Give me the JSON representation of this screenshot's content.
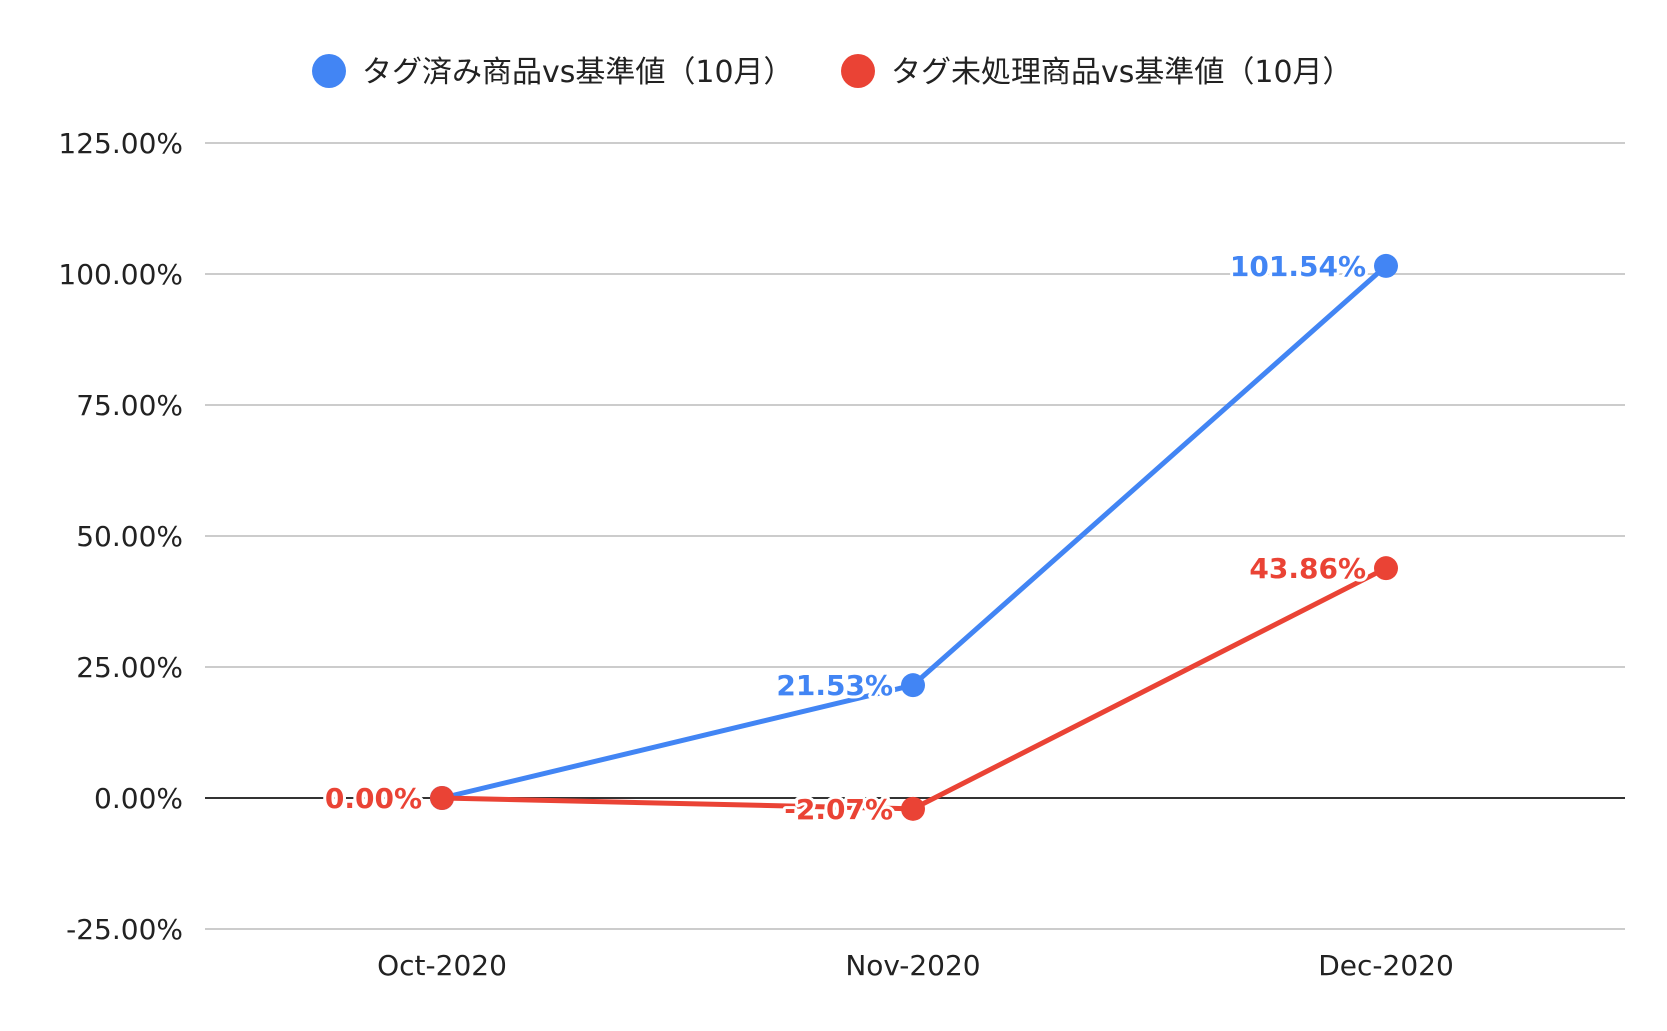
{
  "chart_data": {
    "type": "line",
    "categories": [
      "Oct-2020",
      "Nov-2020",
      "Dec-2020"
    ],
    "series": [
      {
        "name": "タグ済み商品vs基準値（10月）",
        "color": "#4285F4",
        "values": [
          0.0,
          21.53,
          101.54
        ],
        "labels": [
          "",
          "21.53%",
          "101.54%"
        ]
      },
      {
        "name": "タグ未処理商品vs基準値（10月）",
        "color": "#EA4335",
        "values": [
          0.0,
          -2.07,
          43.86
        ],
        "labels": [
          "0.00%",
          "-2.07%",
          "43.86%"
        ]
      }
    ],
    "ylim": [
      -25,
      125
    ],
    "yticks": [
      -25,
      0,
      25,
      50,
      75,
      100,
      125
    ],
    "ytick_labels": [
      "-25.00%",
      "0.00%",
      "25.00%",
      "50.00%",
      "75.00%",
      "100.00%",
      "125.00%"
    ],
    "title": "",
    "xlabel": "",
    "ylabel": "",
    "grid": true,
    "legend_position": "top-center"
  }
}
